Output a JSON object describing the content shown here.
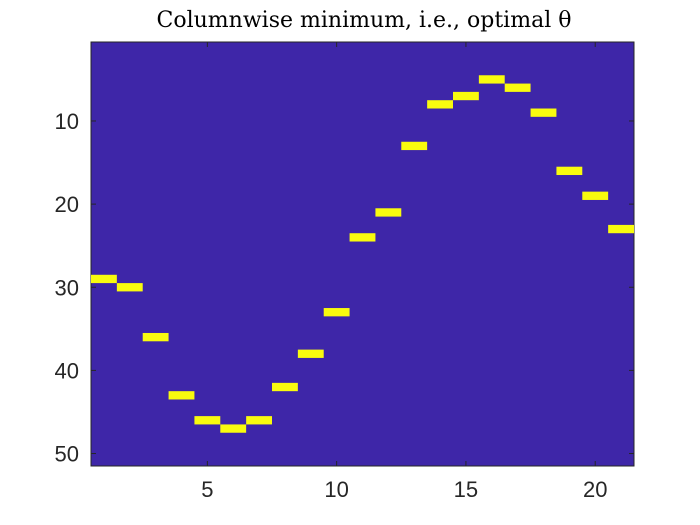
{
  "chart_data": {
    "type": "heatmap",
    "title": "Columnwise minimum, i.e., optimal θ",
    "xlabel": "",
    "ylabel": "",
    "xlim": [
      0.5,
      21.5
    ],
    "ylim": [
      51.5,
      0.5
    ],
    "y_reversed": true,
    "x_ticks": [
      5,
      10,
      15,
      20
    ],
    "y_ticks": [
      10,
      20,
      30,
      40,
      50
    ],
    "grid": false,
    "colors": {
      "background_cell": "#3e26a8",
      "highlight_cell": "#f9fb0e",
      "axis": "#262626"
    },
    "points": [
      {
        "x": 1,
        "y": 29
      },
      {
        "x": 2,
        "y": 30
      },
      {
        "x": 3,
        "y": 36
      },
      {
        "x": 4,
        "y": 43
      },
      {
        "x": 5,
        "y": 46
      },
      {
        "x": 6,
        "y": 47
      },
      {
        "x": 7,
        "y": 46
      },
      {
        "x": 8,
        "y": 42
      },
      {
        "x": 9,
        "y": 38
      },
      {
        "x": 10,
        "y": 33
      },
      {
        "x": 11,
        "y": 24
      },
      {
        "x": 12,
        "y": 21
      },
      {
        "x": 13,
        "y": 13
      },
      {
        "x": 14,
        "y": 8
      },
      {
        "x": 15,
        "y": 7
      },
      {
        "x": 16,
        "y": 5
      },
      {
        "x": 17,
        "y": 6
      },
      {
        "x": 18,
        "y": 9
      },
      {
        "x": 19,
        "y": 16
      },
      {
        "x": 20,
        "y": 19
      },
      {
        "x": 21,
        "y": 23
      }
    ]
  }
}
